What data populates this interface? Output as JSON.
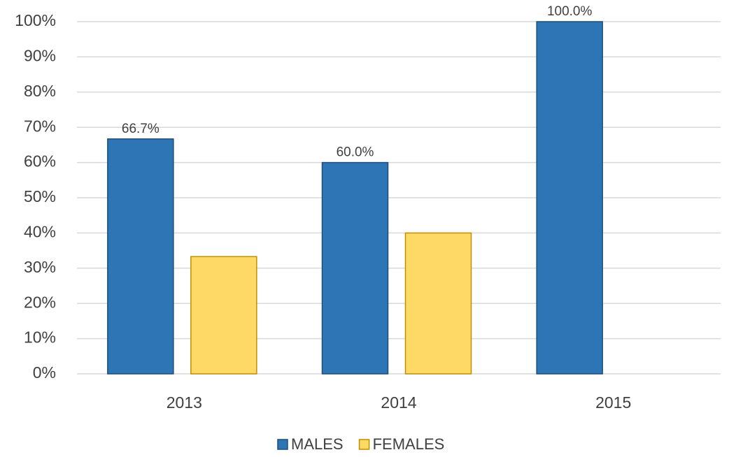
{
  "chart_data": {
    "type": "bar",
    "categories": [
      "2013",
      "2014",
      "2015"
    ],
    "series": [
      {
        "name": "MALES",
        "color": "#2E75B6",
        "values": [
          66.7,
          60.0,
          100.0
        ],
        "value_labels": [
          "66.7%",
          "60.0%",
          "100.0%"
        ]
      },
      {
        "name": "FEMALES",
        "color": "#FFD966",
        "values": [
          33.3,
          40.0,
          0
        ]
      }
    ],
    "ylim": [
      0,
      100
    ],
    "yticks": [
      {
        "value": 0,
        "label": "0%"
      },
      {
        "value": 10,
        "label": "10%"
      },
      {
        "value": 20,
        "label": "20%"
      },
      {
        "value": 30,
        "label": "30%"
      },
      {
        "value": 40,
        "label": "40%"
      },
      {
        "value": 50,
        "label": "50%"
      },
      {
        "value": 60,
        "label": "60%"
      },
      {
        "value": 70,
        "label": "70%"
      },
      {
        "value": 80,
        "label": "80%"
      },
      {
        "value": 90,
        "label": "90%"
      },
      {
        "value": 100,
        "label": "100%"
      }
    ],
    "grid": true,
    "legend": "bottom"
  }
}
